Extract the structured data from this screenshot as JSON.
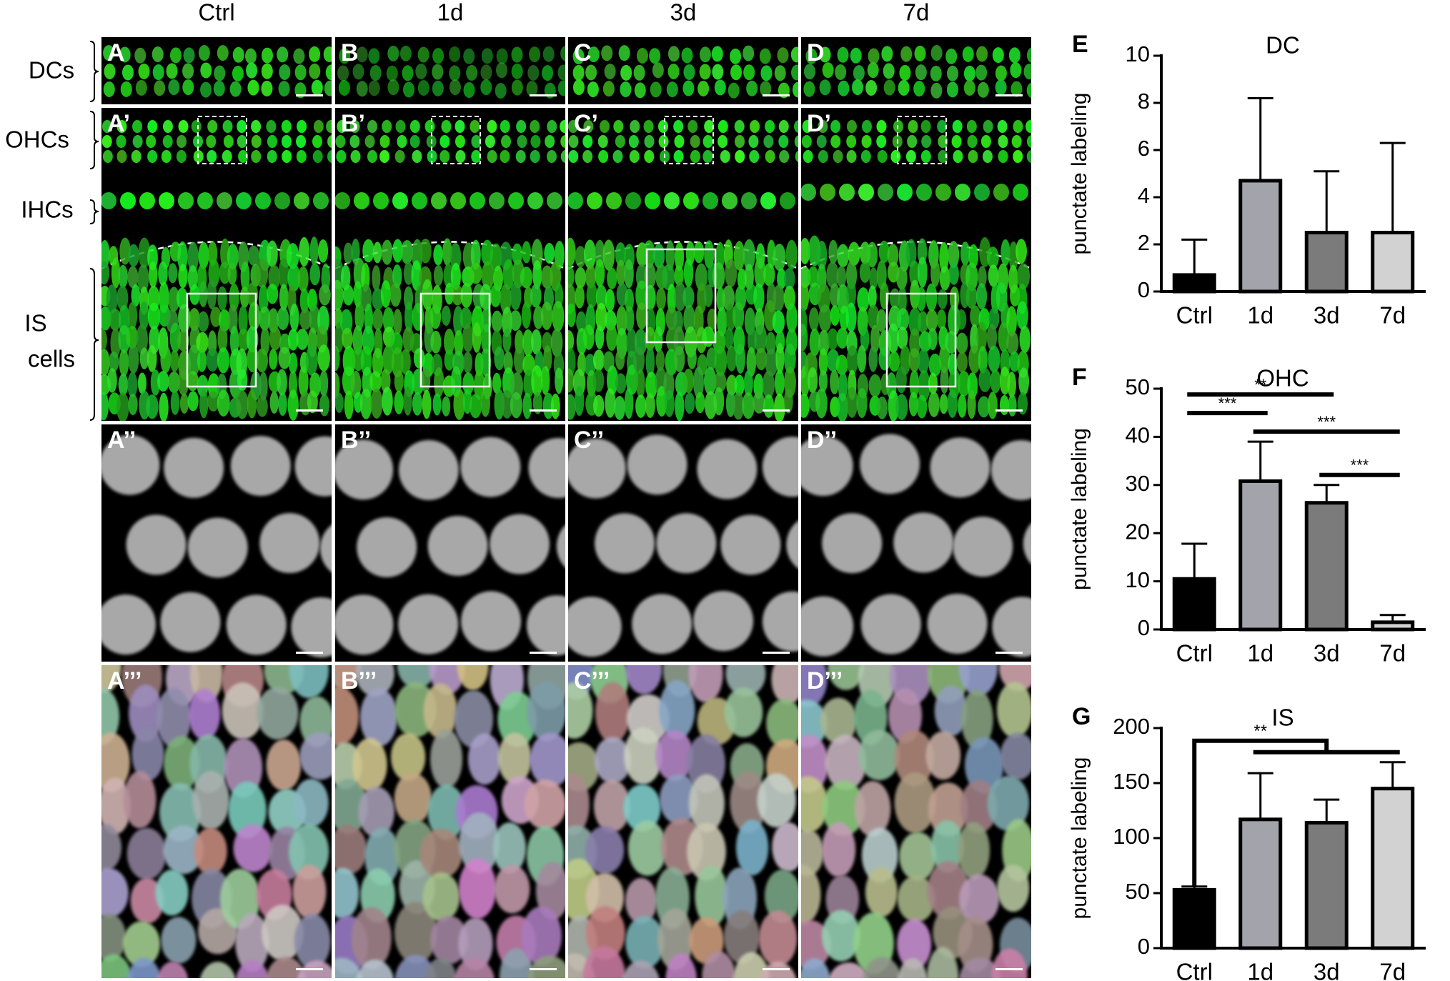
{
  "figure": {
    "column_headers": [
      "Ctrl",
      "1d",
      "3d",
      "7d"
    ],
    "row_labels": [
      "DCs",
      "OHCs",
      "IHCs",
      "IS",
      "cells"
    ],
    "panel_labels": [
      [
        "A",
        "B",
        "C",
        "D"
      ],
      [
        "A’",
        "B’",
        "C’",
        "D’"
      ],
      [
        "A’’",
        "B’’",
        "C’’",
        "D’’"
      ],
      [
        "A’’’",
        "B’’’",
        "C’’’",
        "D’’’"
      ]
    ]
  },
  "chart_data": [
    {
      "type": "bar",
      "panel": "E",
      "title": "DC",
      "y_label": "punctate labeling",
      "categories": [
        "Ctrl",
        "1d",
        "3d",
        "7d"
      ],
      "values": [
        0.7,
        4.7,
        2.5,
        2.5
      ],
      "errors": [
        1.5,
        3.5,
        2.6,
        3.8
      ],
      "colors": [
        "#000000",
        "#a3a3ab",
        "#7b7b7b",
        "#d2d2d2"
      ],
      "ylim": [
        0,
        10
      ],
      "yticks": [
        0,
        2,
        4,
        6,
        8,
        10
      ],
      "annotations": []
    },
    {
      "type": "bar",
      "panel": "F",
      "title": "OHC",
      "y_label": "punctate labeling",
      "categories": [
        "Ctrl",
        "1d",
        "3d",
        "7d"
      ],
      "values": [
        10.5,
        30.8,
        26.3,
        1.5
      ],
      "errors": [
        7.3,
        8.2,
        3.7,
        1.5
      ],
      "colors": [
        "#000000",
        "#a3a3ab",
        "#7b7b7b",
        "#d2d2d2"
      ],
      "ylim": [
        0,
        50
      ],
      "yticks": [
        0,
        10,
        20,
        30,
        40,
        50
      ],
      "annotations": [
        {
          "text": "***",
          "from": 2,
          "to": 3
        },
        {
          "text": "***",
          "from": 1,
          "to": 3
        },
        {
          "text": "***",
          "from": 0,
          "to": 1
        },
        {
          "text": "**",
          "from": 0,
          "to": 2
        }
      ]
    },
    {
      "type": "bar",
      "panel": "G",
      "title": "IS",
      "y_label": "punctate labeling",
      "categories": [
        "Ctrl",
        "1d",
        "3d",
        "7d"
      ],
      "values": [
        53,
        117,
        114,
        145
      ],
      "errors": [
        3,
        42,
        21,
        24
      ],
      "colors": [
        "#000000",
        "#a3a3ab",
        "#7b7b7b",
        "#d2d2d2"
      ],
      "ylim": [
        0,
        200
      ],
      "yticks": [
        0,
        50,
        100,
        150,
        200
      ],
      "annotations": [
        {
          "text": "**",
          "from": 0,
          "to": [
            1,
            3
          ]
        }
      ]
    }
  ]
}
